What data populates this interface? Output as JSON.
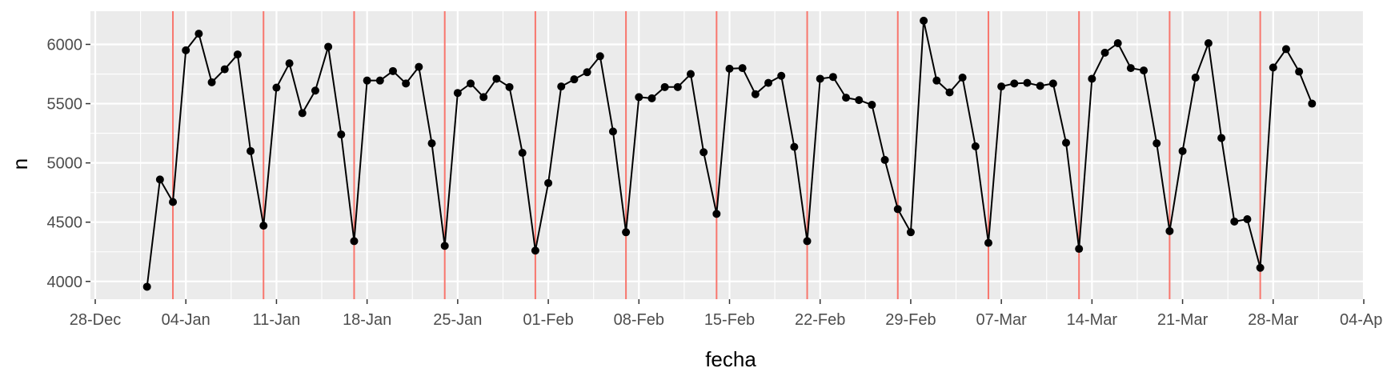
{
  "chart_data": {
    "type": "line",
    "xlabel": "fecha",
    "ylabel": "n",
    "x_axis": {
      "type": "date",
      "range": [
        "2015-12-28",
        "2016-04-04"
      ],
      "ticks": [
        {
          "date": "2015-12-28",
          "label": "28-Dec"
        },
        {
          "date": "2016-01-04",
          "label": "04-Jan"
        },
        {
          "date": "2016-01-11",
          "label": "11-Jan"
        },
        {
          "date": "2016-01-18",
          "label": "18-Jan"
        },
        {
          "date": "2016-01-25",
          "label": "25-Jan"
        },
        {
          "date": "2016-02-01",
          "label": "01-Feb"
        },
        {
          "date": "2016-02-08",
          "label": "08-Feb"
        },
        {
          "date": "2016-02-15",
          "label": "15-Feb"
        },
        {
          "date": "2016-02-22",
          "label": "22-Feb"
        },
        {
          "date": "2016-02-29",
          "label": "29-Feb"
        },
        {
          "date": "2016-03-07",
          "label": "07-Mar"
        },
        {
          "date": "2016-03-14",
          "label": "14-Mar"
        },
        {
          "date": "2016-03-21",
          "label": "21-Mar"
        },
        {
          "date": "2016-03-28",
          "label": "28-Mar"
        },
        {
          "date": "2016-04-04",
          "label": "04-Apr"
        }
      ]
    },
    "y_axis": {
      "range": [
        3850,
        6280
      ],
      "ticks": [
        4000,
        4500,
        5000,
        5500,
        6000
      ]
    },
    "grid": true,
    "vlines": {
      "color": "#F8766D",
      "dates": [
        "2016-01-03",
        "2016-01-10",
        "2016-01-17",
        "2016-01-24",
        "2016-01-31",
        "2016-02-07",
        "2016-02-14",
        "2016-02-21",
        "2016-02-28",
        "2016-03-06",
        "2016-03-13",
        "2016-03-20",
        "2016-03-27"
      ]
    },
    "series": [
      {
        "color": "#000000",
        "x": [
          "2016-01-01",
          "2016-01-02",
          "2016-01-03",
          "2016-01-04",
          "2016-01-05",
          "2016-01-06",
          "2016-01-07",
          "2016-01-08",
          "2016-01-09",
          "2016-01-10",
          "2016-01-11",
          "2016-01-12",
          "2016-01-13",
          "2016-01-14",
          "2016-01-15",
          "2016-01-16",
          "2016-01-17",
          "2016-01-18",
          "2016-01-19",
          "2016-01-20",
          "2016-01-21",
          "2016-01-22",
          "2016-01-23",
          "2016-01-24",
          "2016-01-25",
          "2016-01-26",
          "2016-01-27",
          "2016-01-28",
          "2016-01-29",
          "2016-01-30",
          "2016-01-31",
          "2016-02-01",
          "2016-02-02",
          "2016-02-03",
          "2016-02-04",
          "2016-02-05",
          "2016-02-06",
          "2016-02-07",
          "2016-02-08",
          "2016-02-09",
          "2016-02-10",
          "2016-02-11",
          "2016-02-12",
          "2016-02-13",
          "2016-02-14",
          "2016-02-15",
          "2016-02-16",
          "2016-02-17",
          "2016-02-18",
          "2016-02-19",
          "2016-02-20",
          "2016-02-21",
          "2016-02-22",
          "2016-02-23",
          "2016-02-24",
          "2016-02-25",
          "2016-02-26",
          "2016-02-27",
          "2016-02-28",
          "2016-02-29",
          "2016-03-01",
          "2016-03-02",
          "2016-03-03",
          "2016-03-04",
          "2016-03-05",
          "2016-03-06",
          "2016-03-07",
          "2016-03-08",
          "2016-03-09",
          "2016-03-10",
          "2016-03-11",
          "2016-03-12",
          "2016-03-13",
          "2016-03-14",
          "2016-03-15",
          "2016-03-16",
          "2016-03-17",
          "2016-03-18",
          "2016-03-19",
          "2016-03-20",
          "2016-03-21",
          "2016-03-22",
          "2016-03-23",
          "2016-03-24",
          "2016-03-25",
          "2016-03-26",
          "2016-03-27",
          "2016-03-28",
          "2016-03-29",
          "2016-03-30",
          "2016-03-31"
        ],
        "values": [
          3955,
          4860,
          4670,
          5950,
          6090,
          5680,
          5790,
          5915,
          5100,
          4470,
          5635,
          5840,
          5420,
          5610,
          5980,
          5240,
          4340,
          5695,
          5695,
          5775,
          5670,
          5810,
          5165,
          4300,
          5590,
          5670,
          5555,
          5710,
          5640,
          5085,
          4260,
          4830,
          5645,
          5705,
          5765,
          5900,
          5265,
          4415,
          5555,
          5545,
          5640,
          5640,
          5750,
          5090,
          4570,
          5795,
          5800,
          5580,
          5675,
          5735,
          5135,
          4340,
          5710,
          5725,
          5550,
          5530,
          5490,
          5025,
          4610,
          4415,
          6200,
          5695,
          5595,
          5720,
          5140,
          4325,
          5645,
          5670,
          5675,
          5650,
          5670,
          5170,
          4275,
          5710,
          5930,
          6010,
          5800,
          5780,
          5165,
          4425,
          5100,
          5720,
          6010,
          5210,
          4505,
          4525,
          4115,
          5805,
          5960,
          5770,
          5500
        ]
      }
    ]
  }
}
